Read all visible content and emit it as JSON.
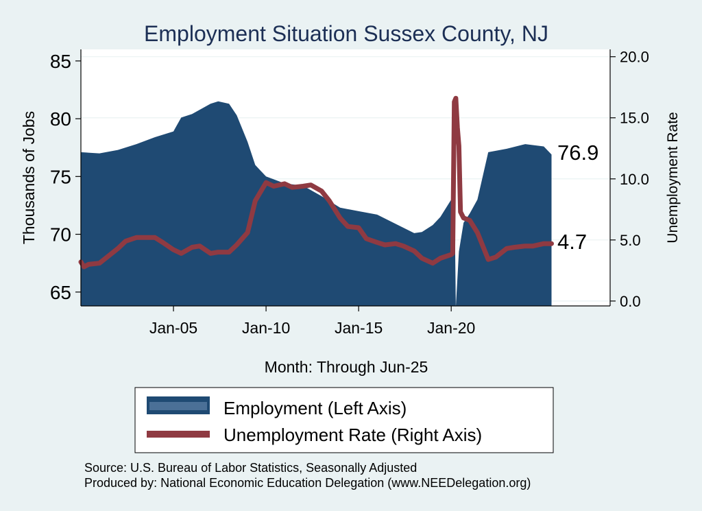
{
  "chart_data": {
    "type": "area",
    "title": "Employment Situation Sussex  County, NJ",
    "xlabel": "Month: Through Jun-25",
    "ylabel_left": "Thousands of Jobs",
    "ylabel_right": "Unemployment Rate",
    "x_ticks": [
      "Jan-05",
      "Jan-10",
      "Jan-15",
      "Jan-20"
    ],
    "y_left_ticks": [
      85,
      80,
      75,
      70,
      65
    ],
    "y_right_ticks": [
      "20.0",
      "15.0",
      "10.0",
      "5.0",
      "0.0"
    ],
    "y_left_range": [
      63.8,
      86
    ],
    "y_right_range": [
      -0.4,
      20.6
    ],
    "x_range": [
      "2000-01",
      "2028-08"
    ],
    "grid": true,
    "legend_position": "bottom",
    "colors": {
      "employment": "#1f4a73",
      "unemployment": "#8f3a42",
      "background": "#eaf2f3",
      "plot": "#ffffff",
      "title": "#1c2f55"
    },
    "series": [
      {
        "name": "Employment (Left Axis)",
        "axis": "left",
        "points": [
          [
            "2000-01",
            77.1
          ],
          [
            "2001-01",
            77.0
          ],
          [
            "2002-01",
            77.3
          ],
          [
            "2003-01",
            77.8
          ],
          [
            "2004-01",
            78.4
          ],
          [
            "2005-01",
            78.9
          ],
          [
            "2005-06",
            80.1
          ],
          [
            "2006-01",
            80.4
          ],
          [
            "2007-01",
            81.3
          ],
          [
            "2007-06",
            81.5
          ],
          [
            "2008-01",
            81.3
          ],
          [
            "2008-06",
            80.3
          ],
          [
            "2009-01",
            78.0
          ],
          [
            "2009-06",
            76.0
          ],
          [
            "2010-01",
            75.0
          ],
          [
            "2011-01",
            74.4
          ],
          [
            "2012-01",
            74.2
          ],
          [
            "2013-01",
            73.3
          ],
          [
            "2014-01",
            72.3
          ],
          [
            "2015-01",
            72.0
          ],
          [
            "2016-01",
            71.7
          ],
          [
            "2017-01",
            70.9
          ],
          [
            "2018-01",
            70.1
          ],
          [
            "2018-06",
            70.2
          ],
          [
            "2019-01",
            70.8
          ],
          [
            "2019-06",
            71.5
          ],
          [
            "2020-01",
            73.0
          ],
          [
            "2020-02",
            76.0
          ],
          [
            "2020-03",
            75.0
          ],
          [
            "2020-04",
            63.7
          ],
          [
            "2020-06",
            68.5
          ],
          [
            "2020-09",
            71.0
          ],
          [
            "2021-01",
            71.8
          ],
          [
            "2021-06",
            73.0
          ],
          [
            "2022-01",
            77.1
          ],
          [
            "2023-01",
            77.4
          ],
          [
            "2024-01",
            77.8
          ],
          [
            "2025-01",
            77.6
          ],
          [
            "2025-06",
            76.9
          ]
        ]
      },
      {
        "name": "Unemployment Rate (Right Axis)",
        "axis": "right",
        "points": [
          [
            "2000-01",
            3.2
          ],
          [
            "2000-03",
            2.8
          ],
          [
            "2000-06",
            3.0
          ],
          [
            "2001-01",
            3.1
          ],
          [
            "2001-06",
            3.6
          ],
          [
            "2002-01",
            4.3
          ],
          [
            "2002-06",
            4.9
          ],
          [
            "2003-01",
            5.2
          ],
          [
            "2004-01",
            5.2
          ],
          [
            "2004-06",
            4.8
          ],
          [
            "2005-01",
            4.2
          ],
          [
            "2005-06",
            3.9
          ],
          [
            "2006-01",
            4.4
          ],
          [
            "2006-06",
            4.5
          ],
          [
            "2007-01",
            3.9
          ],
          [
            "2007-06",
            4.0
          ],
          [
            "2008-01",
            4.0
          ],
          [
            "2008-06",
            4.6
          ],
          [
            "2009-01",
            5.6
          ],
          [
            "2009-06",
            8.2
          ],
          [
            "2010-01",
            9.7
          ],
          [
            "2010-06",
            9.4
          ],
          [
            "2011-01",
            9.6
          ],
          [
            "2011-06",
            9.3
          ],
          [
            "2012-01",
            9.4
          ],
          [
            "2012-06",
            9.5
          ],
          [
            "2013-01",
            9.0
          ],
          [
            "2013-06",
            8.2
          ],
          [
            "2014-01",
            6.8
          ],
          [
            "2014-06",
            6.1
          ],
          [
            "2015-01",
            6.0
          ],
          [
            "2015-06",
            5.1
          ],
          [
            "2016-01",
            4.8
          ],
          [
            "2016-06",
            4.6
          ],
          [
            "2017-01",
            4.7
          ],
          [
            "2017-06",
            4.5
          ],
          [
            "2018-01",
            4.1
          ],
          [
            "2018-06",
            3.5
          ],
          [
            "2019-01",
            3.1
          ],
          [
            "2019-06",
            3.5
          ],
          [
            "2020-01",
            3.8
          ],
          [
            "2020-02",
            3.9
          ],
          [
            "2020-03",
            16.3
          ],
          [
            "2020-04",
            16.6
          ],
          [
            "2020-05",
            14.2
          ],
          [
            "2020-06",
            12.7
          ],
          [
            "2020-07",
            7.3
          ],
          [
            "2020-09",
            6.8
          ],
          [
            "2021-01",
            6.6
          ],
          [
            "2021-06",
            5.6
          ],
          [
            "2022-01",
            3.4
          ],
          [
            "2022-06",
            3.6
          ],
          [
            "2023-01",
            4.3
          ],
          [
            "2023-06",
            4.4
          ],
          [
            "2024-01",
            4.5
          ],
          [
            "2024-06",
            4.5
          ],
          [
            "2025-01",
            4.7
          ],
          [
            "2025-06",
            4.7
          ]
        ]
      }
    ],
    "end_labels": {
      "employment": "76.9",
      "unemployment": "4.7"
    }
  },
  "legend": {
    "employment": "Employment (Left Axis)",
    "unemployment": "Unemployment Rate (Right Axis)"
  },
  "footer": {
    "source": "Source: U.S. Bureau of Labor Statistics, Seasonally Adjusted",
    "produced": "Produced by: National Economic Education Delegation (www.NEEDelegation.org)"
  }
}
